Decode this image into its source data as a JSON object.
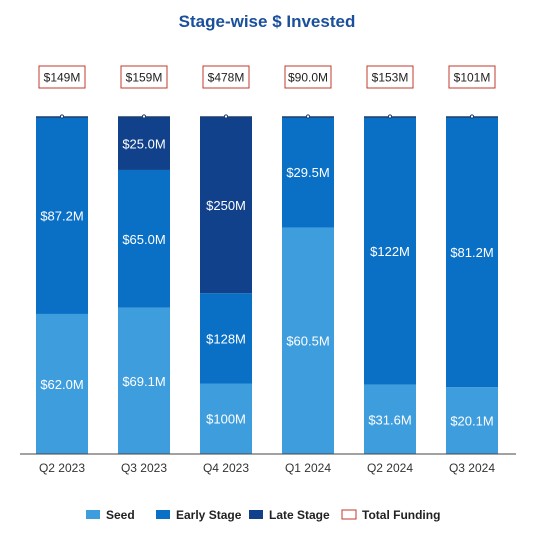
{
  "chart_data": {
    "type": "bar",
    "stacked": true,
    "title": "Stage-wise $ Invested",
    "categories": [
      "Q2 2023",
      "Q3 2023",
      "Q4 2023",
      "Q1 2024",
      "Q2 2024",
      "Q3 2024"
    ],
    "series": [
      {
        "name": "Seed",
        "color": "#3e9ddd",
        "values": [
          62.0,
          69.1,
          100,
          60.5,
          31.6,
          20.1
        ],
        "labels": [
          "$62.0M",
          "$69.1M",
          "$100M",
          "$60.5M",
          "$31.6M",
          "$20.1M"
        ]
      },
      {
        "name": "Early Stage",
        "color": "#0a70c6",
        "values": [
          87.2,
          65.0,
          128,
          29.5,
          122,
          81.2
        ],
        "labels": [
          "$87.2M",
          "$65.0M",
          "$128M",
          "$29.5M",
          "$122M",
          "$81.2M"
        ]
      },
      {
        "name": "Late Stage",
        "color": "#10418a",
        "values": [
          0,
          25.0,
          250,
          0,
          0,
          0
        ],
        "labels": [
          "",
          "$25.0M",
          "$250M",
          "",
          "",
          ""
        ]
      }
    ],
    "totals": {
      "name": "Total Funding",
      "values": [
        149,
        159,
        478,
        90.0,
        153,
        101
      ],
      "labels": [
        "$149M",
        "$159M",
        "$478M",
        "$90.0M",
        "$153M",
        "$101M"
      ],
      "box_color": "#c0392b"
    },
    "normalized_to_100_percent": true,
    "legend_position": "bottom",
    "grid": false,
    "title_color": "#1a4f9c"
  }
}
